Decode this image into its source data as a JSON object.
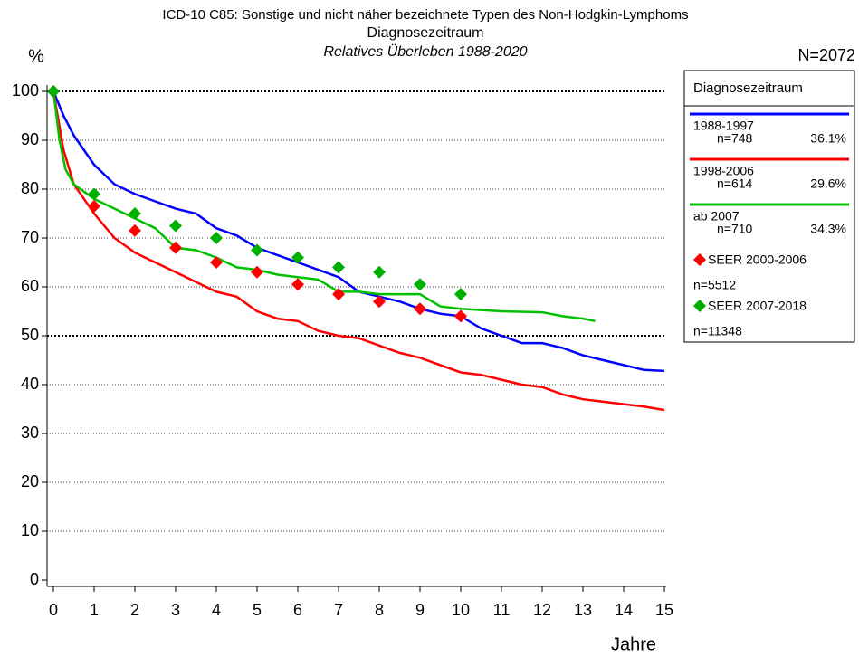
{
  "chart_data": {
    "type": "line",
    "title": "ICD-10 C85: Sonstige und nicht näher bezeichnete Typen des Non-Hodgkin-Lymphoms",
    "subtitle": "Diagnosezeitraum",
    "subtitle2": "Relatives Überleben 1988-2020",
    "total": "N=2072",
    "y_unit": "%",
    "x_label": "Jahre",
    "legend_title": "Diagnosezeitraum",
    "xlim": [
      0,
      15
    ],
    "xticks": [
      0,
      1,
      2,
      3,
      4,
      5,
      6,
      7,
      8,
      9,
      10,
      11,
      12,
      13,
      14,
      15
    ],
    "ylim": [
      0,
      100
    ],
    "yticks": [
      0,
      10,
      20,
      30,
      40,
      50,
      60,
      70,
      80,
      90,
      100
    ],
    "grid": true,
    "grid_emphasis": [
      50,
      100
    ],
    "series": [
      {
        "name": "1988-1997",
        "n": "n=748",
        "share": "36.1%",
        "color": "#0000ff",
        "type": "line",
        "x": [
          0,
          0.25,
          0.5,
          1,
          1.5,
          2,
          2.5,
          3,
          3.5,
          4,
          4.5,
          5,
          5.5,
          6,
          6.5,
          7,
          7.5,
          8,
          8.5,
          9,
          9.5,
          10,
          10.5,
          11,
          11.5,
          12,
          12.5,
          13,
          13.5,
          14,
          14.5,
          15
        ],
        "values": [
          100,
          95,
          91,
          85,
          81,
          79,
          77.5,
          76,
          75,
          72,
          70.5,
          68,
          66.5,
          65,
          63.5,
          62,
          59,
          58,
          57,
          55.5,
          54.5,
          54,
          51.5,
          50,
          48.5,
          48.5,
          47.5,
          46,
          45,
          44,
          43,
          42.8
        ]
      },
      {
        "name": "1998-2006",
        "n": "n=614",
        "share": "29.6%",
        "color": "#ff0000",
        "type": "line",
        "x": [
          0,
          0.25,
          0.5,
          1,
          1.5,
          2,
          2.5,
          3,
          3.5,
          4,
          4.5,
          5,
          5.5,
          6,
          6.5,
          7,
          7.5,
          8,
          8.5,
          9,
          9.5,
          10,
          10.5,
          11,
          11.5,
          12,
          12.5,
          13,
          13.5,
          14,
          14.5,
          15
        ],
        "values": [
          100,
          88,
          81,
          75,
          70,
          67,
          65,
          63,
          61,
          59,
          58,
          55,
          53.5,
          53,
          51,
          50,
          49.5,
          48,
          46.5,
          45.5,
          44,
          42.5,
          42,
          41,
          40,
          39.5,
          38,
          37,
          36.5,
          36,
          35.5,
          34.8
        ]
      },
      {
        "name": "ab 2007",
        "n": "n=710",
        "share": "34.3%",
        "color": "#00c000",
        "type": "line",
        "x": [
          0,
          0.15,
          0.3,
          0.5,
          1,
          1.5,
          2,
          2.5,
          3,
          3.5,
          4,
          4.5,
          5,
          5.5,
          6,
          6.5,
          7,
          7.5,
          8,
          8.5,
          9,
          9.5,
          10,
          11,
          12,
          12.5,
          13,
          13.3
        ],
        "values": [
          100,
          90,
          84,
          81,
          78,
          76,
          74,
          72,
          68,
          67.5,
          66,
          64,
          63.5,
          62.5,
          62,
          61.5,
          59,
          59,
          58.5,
          58.5,
          58.5,
          56,
          55.5,
          55,
          54.8,
          54,
          53.5,
          53
        ]
      },
      {
        "name": "SEER 2000-2006",
        "n": "n=5512",
        "color": "#ff0000",
        "type": "scatter",
        "x": [
          0,
          1,
          2,
          3,
          4,
          5,
          6,
          7,
          8,
          9,
          10
        ],
        "values": [
          100,
          76.5,
          71.5,
          68,
          65,
          63,
          60.5,
          58.5,
          57,
          55.5,
          54
        ]
      },
      {
        "name": "SEER 2007-2018",
        "n": "n=11348",
        "color": "#00b000",
        "type": "scatter",
        "x": [
          0,
          1,
          2,
          3,
          4,
          5,
          6,
          7,
          8,
          9,
          10
        ],
        "values": [
          100,
          79,
          75,
          72.5,
          70,
          67.5,
          66,
          64,
          63,
          60.5,
          58.5
        ]
      }
    ]
  }
}
